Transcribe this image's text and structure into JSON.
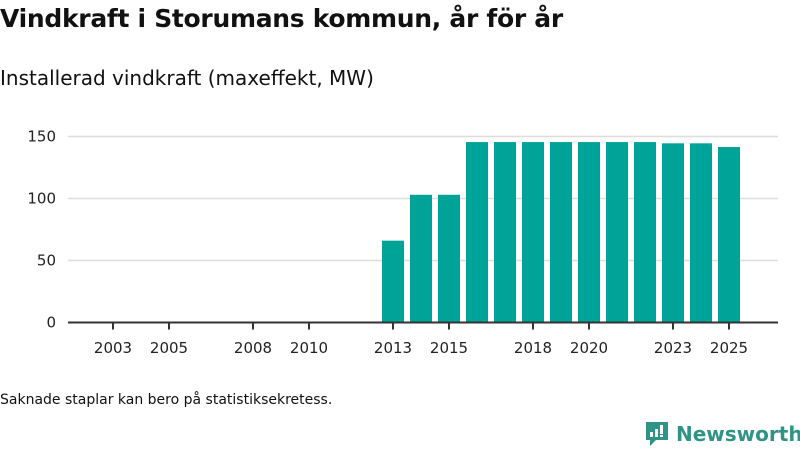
{
  "title": "Vindkraft i Storumans kommun, år för år",
  "subtitle": "Installerad vindkraft (maxeffekt, MW)",
  "note": "Saknade staplar kan bero på statistiksekretess.",
  "logo": {
    "text": "Newsworthy"
  },
  "colors": {
    "bar": "#00a398",
    "grid": "#dddddd",
    "axis": "#333333",
    "brand": "#2f9385"
  },
  "chart_data": {
    "type": "bar",
    "title": "Installerad vindkraft (maxeffekt, MW)",
    "xlabel": "",
    "ylabel": "MW",
    "ylim": [
      0,
      150
    ],
    "yticks": [
      0,
      50,
      100,
      150
    ],
    "xticks": [
      2003,
      2005,
      2008,
      2010,
      2013,
      2015,
      2018,
      2020,
      2023,
      2025
    ],
    "categories": [
      2013,
      2014,
      2015,
      2016,
      2017,
      2018,
      2019,
      2020,
      2021,
      2022,
      2023,
      2024,
      2025
    ],
    "values": [
      66,
      103,
      103,
      145.5,
      145.5,
      145.5,
      145.5,
      145.5,
      145.5,
      145.5,
      144.5,
      144.5,
      141.5
    ],
    "grid": true,
    "legend": "none"
  }
}
